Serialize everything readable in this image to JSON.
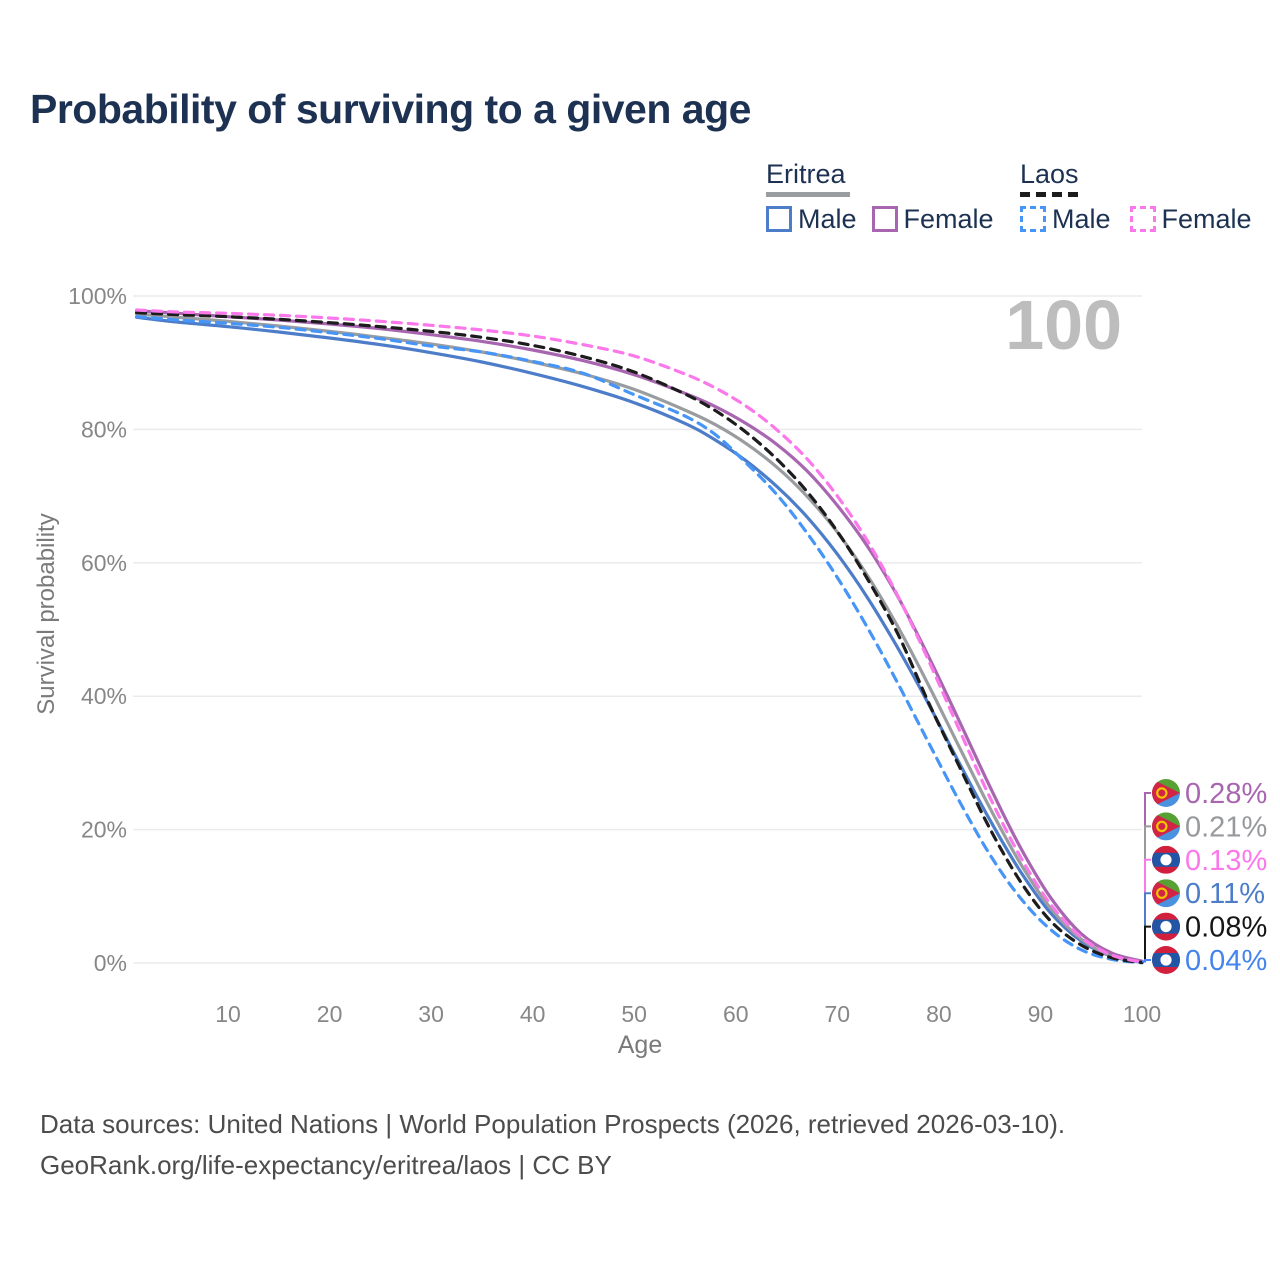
{
  "header": {
    "title": "Probability of surviving to a given age"
  },
  "legend": {
    "groups": [
      {
        "name": "Eritrea",
        "line_style": "solid",
        "items": [
          {
            "label": "Male"
          },
          {
            "label": "Female"
          }
        ]
      },
      {
        "name": "Laos",
        "line_style": "dashed",
        "items": [
          {
            "label": "Male"
          },
          {
            "label": "Female"
          }
        ]
      }
    ]
  },
  "watermark": "100",
  "chart_data": {
    "type": "line",
    "title": "Probability of surviving to a given age",
    "xlabel": "Age",
    "ylabel": "Survival probability",
    "xlim": [
      1,
      100
    ],
    "ylim": [
      0,
      100
    ],
    "grid": "horizontal",
    "legend_position": "top-right",
    "x_ticks": [
      10,
      20,
      30,
      40,
      50,
      60,
      70,
      80,
      90,
      100
    ],
    "y_ticks": [
      {
        "value": 0,
        "label": "0%"
      },
      {
        "value": 20,
        "label": "20%"
      },
      {
        "value": 40,
        "label": "40%"
      },
      {
        "value": 60,
        "label": "60%"
      },
      {
        "value": 80,
        "label": "80%"
      },
      {
        "value": 100,
        "label": "100%"
      }
    ],
    "x": [
      1,
      5,
      10,
      15,
      20,
      25,
      30,
      35,
      40,
      45,
      50,
      55,
      58,
      61,
      64,
      67,
      70,
      73,
      76,
      79,
      82,
      85,
      88,
      91,
      94,
      97,
      100
    ],
    "series": [
      {
        "id": "eritrea-male",
        "name": "Eritrea Male",
        "color": "#4d7dc9",
        "dash": false,
        "values": [
          96.8,
          96.1,
          95.4,
          94.6,
          93.7,
          92.7,
          91.5,
          90.1,
          88.4,
          86.4,
          84.0,
          80.9,
          78.4,
          75.3,
          71.5,
          66.9,
          61.3,
          54.7,
          47.1,
          38.8,
          30.0,
          21.5,
          13.8,
          7.5,
          3.3,
          1.0,
          0.11
        ]
      },
      {
        "id": "eritrea-total",
        "name": "Eritrea",
        "color": "#9a9da0",
        "dash": false,
        "values": [
          97.3,
          96.8,
          96.2,
          95.5,
          94.7,
          93.8,
          92.8,
          91.6,
          90.1,
          88.3,
          86.0,
          82.9,
          80.7,
          77.9,
          74.4,
          70.0,
          64.6,
          58.0,
          50.3,
          41.6,
          32.4,
          23.3,
          15.0,
          8.2,
          3.6,
          1.1,
          0.21
        ]
      },
      {
        "id": "eritrea-female",
        "name": "Eritrea Female",
        "color": "#a866b1",
        "dash": false,
        "values": [
          97.8,
          97.4,
          96.9,
          96.4,
          95.8,
          95.1,
          94.2,
          93.2,
          91.9,
          90.3,
          88.2,
          85.4,
          83.4,
          80.9,
          77.8,
          73.8,
          68.6,
          62.4,
          54.8,
          45.9,
          36.3,
          26.5,
          17.4,
          9.8,
          4.4,
          1.5,
          0.28
        ]
      },
      {
        "id": "laos-male",
        "name": "Laos Male",
        "color": "#4795f6",
        "dash": true,
        "values": [
          96.9,
          96.4,
          95.9,
          95.3,
          94.5,
          93.6,
          92.5,
          91.6,
          90.2,
          88.4,
          85.2,
          82.0,
          79.2,
          75.0,
          70.3,
          64.5,
          57.8,
          50.2,
          41.8,
          33.0,
          24.3,
          16.3,
          9.8,
          5.0,
          2.0,
          0.55,
          0.04
        ]
      },
      {
        "id": "laos-total",
        "name": "Laos",
        "color": "#1c1c1c",
        "dash": true,
        "values": [
          97.5,
          97.2,
          96.9,
          96.5,
          96.0,
          95.4,
          94.7,
          93.8,
          92.6,
          90.9,
          88.6,
          85.3,
          82.8,
          79.6,
          75.6,
          70.7,
          64.7,
          57.5,
          49.2,
          39.0,
          29.5,
          20.2,
          12.3,
          6.3,
          2.7,
          0.8,
          0.08
        ]
      },
      {
        "id": "laos-female",
        "name": "Laos Female",
        "color": "#fb78eb",
        "dash": true,
        "values": [
          97.9,
          97.6,
          97.4,
          97.1,
          96.7,
          96.2,
          95.6,
          94.9,
          94.0,
          92.7,
          91.0,
          88.3,
          86.2,
          83.5,
          80.0,
          75.6,
          70.0,
          63.2,
          54.9,
          45.3,
          35.0,
          24.9,
          16.0,
          8.8,
          3.9,
          1.2,
          0.13
        ]
      }
    ],
    "end_labels": [
      {
        "label": "0.28%",
        "series": "Eritrea Female",
        "flag": "eritrea",
        "color": "#a866b1"
      },
      {
        "label": "0.21%",
        "series": "Eritrea",
        "flag": "eritrea",
        "color": "#97999c"
      },
      {
        "label": "0.13%",
        "series": "Laos Female",
        "flag": "laos",
        "color": "#fb78eb"
      },
      {
        "label": "0.11%",
        "series": "Eritrea Male",
        "flag": "eritrea",
        "color": "#4d7dc9"
      },
      {
        "label": "0.08%",
        "series": "Laos",
        "flag": "laos",
        "color": "#161616"
      },
      {
        "label": "0.04%",
        "series": "Laos Male",
        "flag": "laos",
        "color": "#4584ef"
      }
    ]
  },
  "footer": {
    "line1": "Data sources: United Nations | World Population Prospects (2026, retrieved 2026-03-10).",
    "line2": "GeoRank.org/life-expectancy/eritrea/laos | CC BY"
  }
}
